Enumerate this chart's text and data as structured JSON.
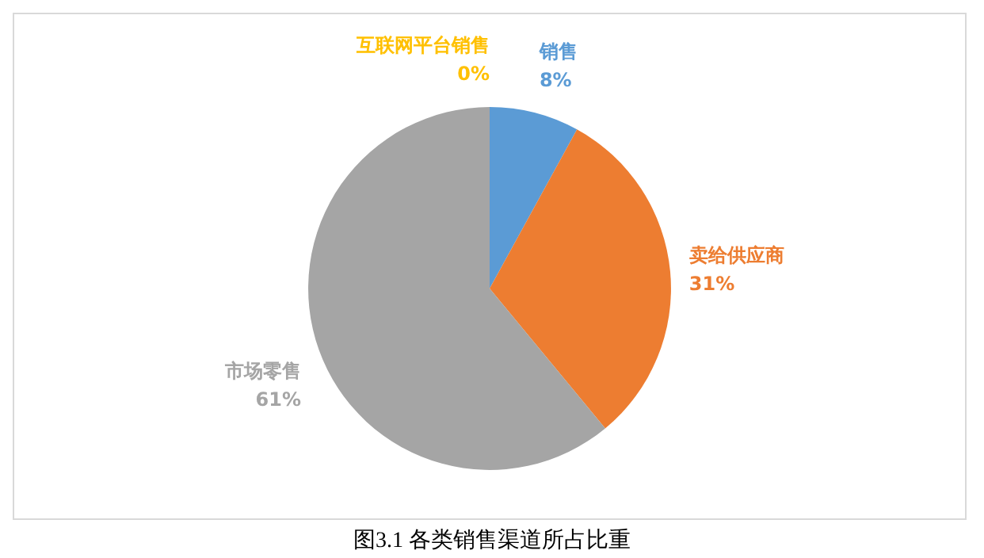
{
  "chart_data": {
    "type": "pie",
    "categories": [
      "销售",
      "卖给供应商",
      "市场零售",
      "互联网平台销售"
    ],
    "values": [
      8,
      31,
      61,
      0
    ],
    "colors": [
      "#5b9bd5",
      "#ed7d31",
      "#a5a5a5",
      "#ffc000"
    ],
    "legend": false,
    "value_labels": [
      "8%",
      "31%",
      "61%",
      "0%"
    ],
    "annotations": [
      "图3.1 各类销售渠道所占比重"
    ]
  }
}
